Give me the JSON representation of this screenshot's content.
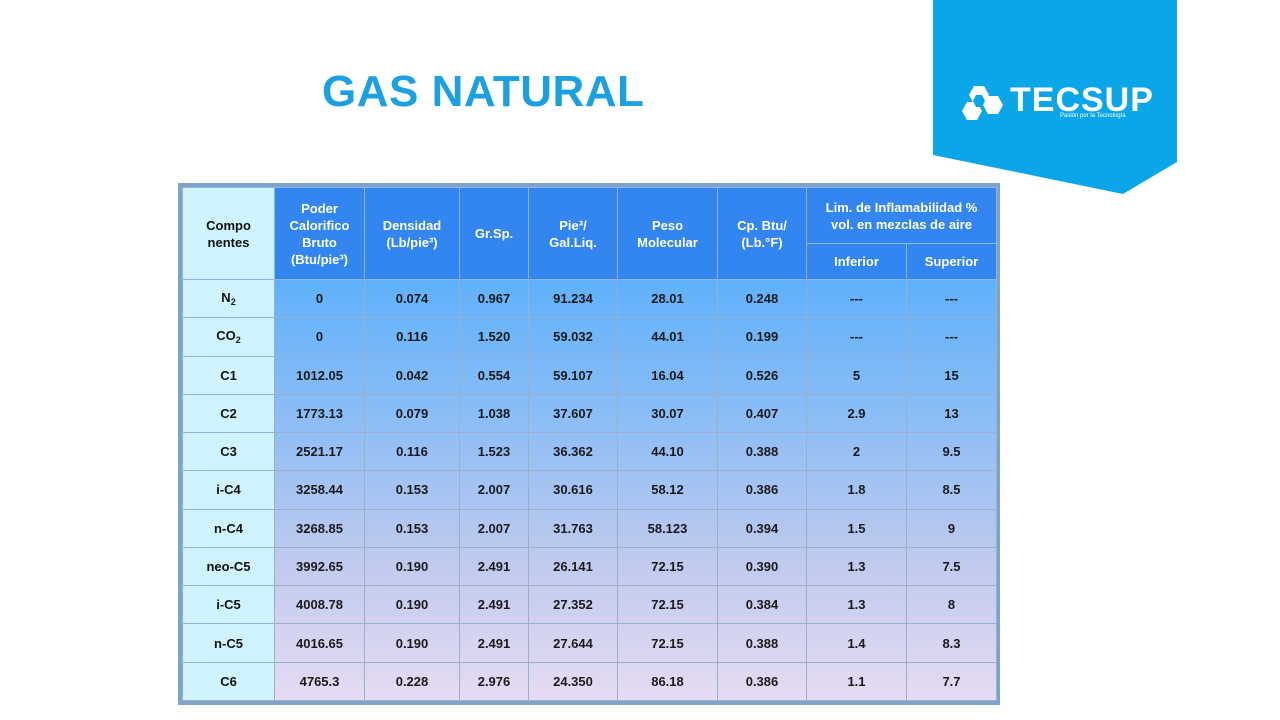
{
  "title": "GAS NATURAL",
  "logo": {
    "brand": "TECSUP",
    "tagline": "Pasión por la Tecnología",
    "panel_color": "#0aa6e8"
  },
  "colors": {
    "title": "#1ba1e2",
    "header_bg": "#3385f0",
    "first_col_bg": "#cff4ff"
  },
  "table": {
    "headers": {
      "componentes": "Compo nentes",
      "poder_calorifico": "Poder Calorifico Bruto (Btu/pie³)",
      "densidad": "Densidad (Lb/pie³)",
      "grsp": "Gr.Sp.",
      "pie3": "Pie³/ Gal.Liq.",
      "peso": "Peso Molecular",
      "cp": "Cp. Btu/ (Lb.°F)",
      "lim": "Lim. de Inflamabilidad % vol. en mezclas de aire",
      "inferior": "Inferior",
      "superior": "Superior"
    },
    "rows": [
      {
        "comp": "N",
        "comp_sub": "2",
        "poder": "0",
        "densidad": "0.074",
        "grsp": "0.967",
        "pie3": "91.234",
        "peso": "28.01",
        "cp": "0.248",
        "inferior": "---",
        "superior": "---"
      },
      {
        "comp": "CO",
        "comp_sub": "2",
        "poder": "0",
        "densidad": "0.116",
        "grsp": "1.520",
        "pie3": "59.032",
        "peso": "44.01",
        "cp": "0.199",
        "inferior": "---",
        "superior": "---"
      },
      {
        "comp": "C1",
        "comp_sub": "",
        "poder": "1012.05",
        "densidad": "0.042",
        "grsp": "0.554",
        "pie3": "59.107",
        "peso": "16.04",
        "cp": "0.526",
        "inferior": "5",
        "superior": "15"
      },
      {
        "comp": "C2",
        "comp_sub": "",
        "poder": "1773.13",
        "densidad": "0.079",
        "grsp": "1.038",
        "pie3": "37.607",
        "peso": "30.07",
        "cp": "0.407",
        "inferior": "2.9",
        "superior": "13"
      },
      {
        "comp": "C3",
        "comp_sub": "",
        "poder": "2521.17",
        "densidad": "0.116",
        "grsp": "1.523",
        "pie3": "36.362",
        "peso": "44.10",
        "cp": "0.388",
        "inferior": "2",
        "superior": "9.5"
      },
      {
        "comp": "i-C4",
        "comp_sub": "",
        "poder": "3258.44",
        "densidad": "0.153",
        "grsp": "2.007",
        "pie3": "30.616",
        "peso": "58.12",
        "cp": "0.386",
        "inferior": "1.8",
        "superior": "8.5"
      },
      {
        "comp": "n-C4",
        "comp_sub": "",
        "poder": "3268.85",
        "densidad": "0.153",
        "grsp": "2.007",
        "pie3": "31.763",
        "peso": "58.123",
        "cp": "0.394",
        "inferior": "1.5",
        "superior": "9"
      },
      {
        "comp": "neo-C5",
        "comp_sub": "",
        "poder": "3992.65",
        "densidad": "0.190",
        "grsp": "2.491",
        "pie3": "26.141",
        "peso": "72.15",
        "cp": "0.390",
        "inferior": "1.3",
        "superior": "7.5"
      },
      {
        "comp": "i-C5",
        "comp_sub": "",
        "poder": "4008.78",
        "densidad": "0.190",
        "grsp": "2.491",
        "pie3": "27.352",
        "peso": "72.15",
        "cp": "0.384",
        "inferior": "1.3",
        "superior": "8"
      },
      {
        "comp": "n-C5",
        "comp_sub": "",
        "poder": "4016.65",
        "densidad": "0.190",
        "grsp": "2.491",
        "pie3": "27.644",
        "peso": "72.15",
        "cp": "0.388",
        "inferior": "1.4",
        "superior": "8.3"
      },
      {
        "comp": "C6",
        "comp_sub": "",
        "poder": "4765.3",
        "densidad": "0.228",
        "grsp": "2.976",
        "pie3": "24.350",
        "peso": "86.18",
        "cp": "0.386",
        "inferior": "1.1",
        "superior": "7.7"
      }
    ]
  }
}
